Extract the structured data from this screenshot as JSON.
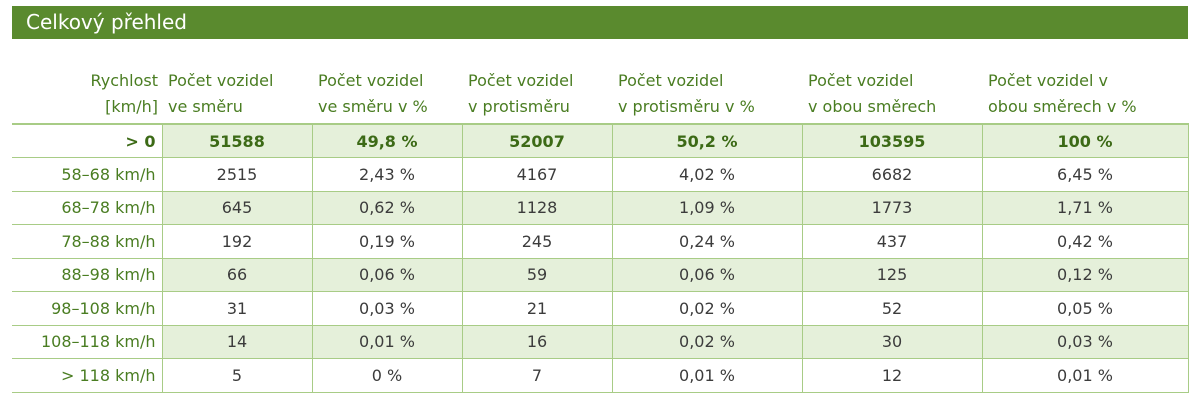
{
  "title": "Celkový přehled",
  "headers": [
    [
      "Rychlost",
      "[km/h]"
    ],
    [
      "Počet vozidel",
      "ve směru"
    ],
    [
      "Počet vozidel",
      "ve směru v %"
    ],
    [
      "Počet vozidel",
      "v protisměru"
    ],
    [
      "Počet vozidel",
      "v protisměru v %"
    ],
    [
      "Počet vozidel",
      "v obou směrech"
    ],
    [
      "Počet vozidel v",
      "obou směrech v %"
    ]
  ],
  "rows": [
    [
      "> 0",
      "51588",
      "49,8 %",
      "52007",
      "50,2 %",
      "103595",
      "100 %"
    ],
    [
      "58–68 km/h",
      "2515",
      "2,43 %",
      "4167",
      "4,02 %",
      "6682",
      "6,45 %"
    ],
    [
      "68–78 km/h",
      "645",
      "0,62 %",
      "1128",
      "1,09 %",
      "1773",
      "1,71 %"
    ],
    [
      "78–88 km/h",
      "192",
      "0,19 %",
      "245",
      "0,24 %",
      "437",
      "0,42 %"
    ],
    [
      "88–98 km/h",
      "66",
      "0,06 %",
      "59",
      "0,06 %",
      "125",
      "0,12 %"
    ],
    [
      "98–108 km/h",
      "31",
      "0,03 %",
      "21",
      "0,02 %",
      "52",
      "0,05 %"
    ],
    [
      "108–118 km/h",
      "14",
      "0,01 %",
      "16",
      "0,02 %",
      "30",
      "0,03 %"
    ],
    [
      "> 118 km/h",
      "5",
      "0 %",
      "7",
      "0,01 %",
      "12",
      "0,01 %"
    ]
  ],
  "colors": {
    "title_bg": "#5a8a2e",
    "header_text": "#4a7d22",
    "shade": "#e5f0da",
    "border": "#a8cc86"
  }
}
